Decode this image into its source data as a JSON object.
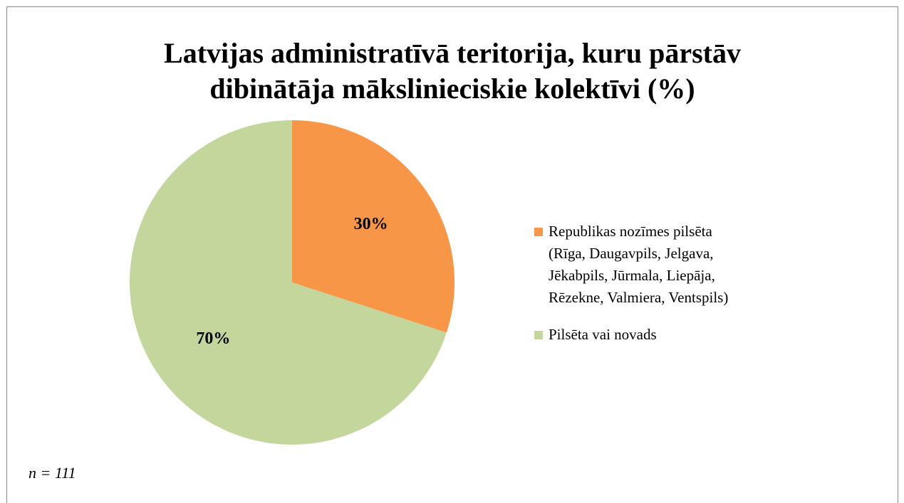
{
  "chart_data": {
    "type": "pie",
    "title": [
      "Latvijas administratīvā teritorija, kuru pārstāv",
      "dibinātāja mākslinieciskie kolektīvi (%)"
    ],
    "categories": [
      "Republikas nozīmes pilsēta (Rīga, Daugavpils, Jelgava, Jēkabpils, Jūrmala, Liepāja, Rēzekne, Valmiera, Ventspils)",
      "Pilsēta vai novads"
    ],
    "values": [
      30,
      70
    ],
    "value_labels": [
      "30%",
      "70%"
    ],
    "colors": [
      "#f79646",
      "#c3d69b"
    ],
    "legend": "right",
    "note": "n = 111"
  }
}
